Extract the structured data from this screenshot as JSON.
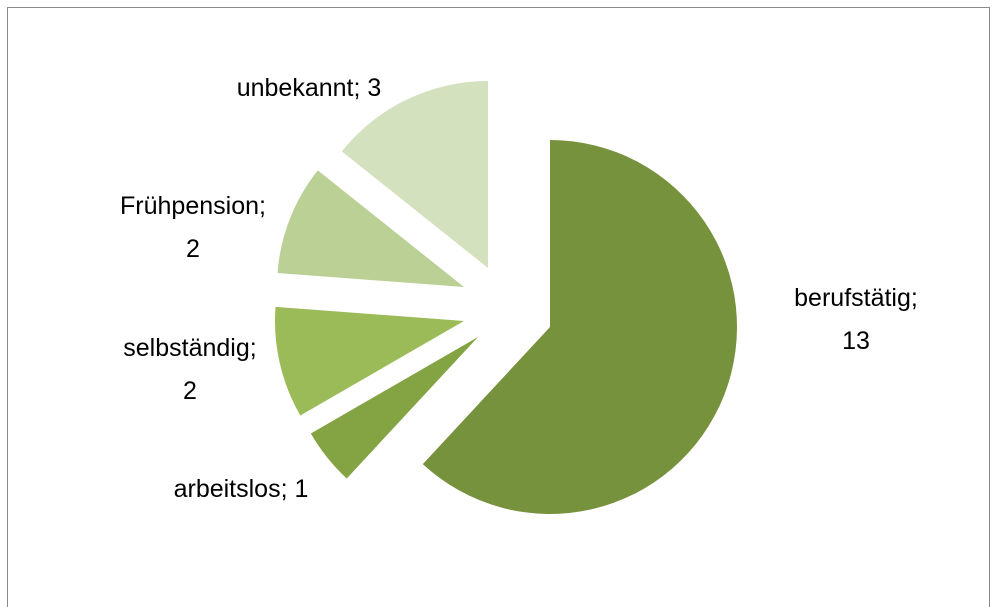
{
  "chart_data": {
    "type": "pie",
    "title": "",
    "exploded": true,
    "slices": [
      {
        "label": "berufstätig",
        "value": 13,
        "color": "#76923c",
        "label_lines": [
          "berufstätig;",
          "13"
        ]
      },
      {
        "label": "arbeitslos",
        "value": 1,
        "color": "#84a342",
        "label_lines": [
          "arbeitslos; 1"
        ]
      },
      {
        "label": "selbständig",
        "value": 2,
        "color": "#9bbb59",
        "label_lines": [
          "selbständig;",
          "2"
        ]
      },
      {
        "label": "Frühpension",
        "value": 2,
        "color": "#bad094",
        "label_lines": [
          "Frühpension;",
          "2"
        ]
      },
      {
        "label": "unbekannt",
        "value": 3,
        "color": "#d4e1bf",
        "label_lines": [
          "unbekannt; 3"
        ]
      }
    ]
  }
}
